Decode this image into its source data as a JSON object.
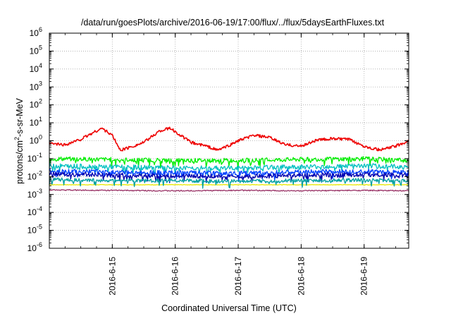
{
  "chart_data": {
    "type": "line",
    "title": "/data/run/goesPlots/archive/2016-06-19/17:00/flux/../flux/5daysEarthFluxes.txt",
    "xlabel": "Coordinated Universal Time (UTC)",
    "ylabel": "protons/cm2-s-sr-MeV",
    "y_scale": "log",
    "ylim": [
      "1e-6",
      "1e6"
    ],
    "y_ticks": [
      {
        "base": "10",
        "exp": "-6"
      },
      {
        "base": "10",
        "exp": "-5"
      },
      {
        "base": "10",
        "exp": "-4"
      },
      {
        "base": "10",
        "exp": "-3"
      },
      {
        "base": "10",
        "exp": "-2"
      },
      {
        "base": "10",
        "exp": "-1"
      },
      {
        "base": "10",
        "exp": "0"
      },
      {
        "base": "10",
        "exp": "1"
      },
      {
        "base": "10",
        "exp": "2"
      },
      {
        "base": "10",
        "exp": "3"
      },
      {
        "base": "10",
        "exp": "4"
      },
      {
        "base": "10",
        "exp": "5"
      },
      {
        "base": "10",
        "exp": "6"
      }
    ],
    "xlim": [
      "2016-06-14 00:00",
      "2016-06-19 17:00"
    ],
    "x_ticks": [
      "2016-6-15",
      "2016-6-16",
      "2016-6-17",
      "2016-6-18",
      "2016-6-19"
    ],
    "grid": true,
    "series": [
      {
        "color": "#ee0000",
        "x": [
          "2016-06-14 00:00",
          "2016-06-14 06:00",
          "2016-06-14 12:00",
          "2016-06-14 16:00",
          "2016-06-14 20:00",
          "2016-06-15 00:00",
          "2016-06-15 03:00",
          "2016-06-15 06:00",
          "2016-06-15 12:00",
          "2016-06-15 18:00",
          "2016-06-15 22:00",
          "2016-06-16 02:00",
          "2016-06-16 06:00",
          "2016-06-16 12:00",
          "2016-06-16 16:00",
          "2016-06-16 20:00",
          "2016-06-17 00:00",
          "2016-06-17 06:00",
          "2016-06-17 12:00",
          "2016-06-17 18:00",
          "2016-06-18 00:00",
          "2016-06-18 06:00",
          "2016-06-18 12:00",
          "2016-06-18 18:00",
          "2016-06-19 00:00",
          "2016-06-19 06:00",
          "2016-06-19 12:00",
          "2016-06-19 17:00"
        ],
        "y": [
          0.7,
          0.6,
          1.2,
          2.5,
          5.0,
          2.0,
          0.3,
          0.4,
          0.8,
          3.5,
          5.0,
          2.0,
          0.8,
          0.5,
          0.3,
          0.5,
          1.0,
          2.0,
          1.5,
          0.6,
          0.5,
          1.1,
          1.3,
          1.2,
          0.5,
          0.3,
          0.5,
          1.0
        ]
      },
      {
        "color": "#00ee00",
        "x": [
          "2016-06-14 00:00",
          "2016-06-15 00:00",
          "2016-06-16 00:00",
          "2016-06-17 00:00",
          "2016-06-18 00:00",
          "2016-06-19 00:00",
          "2016-06-19 17:00"
        ],
        "y": [
          0.1,
          0.09,
          0.08,
          0.08,
          0.09,
          0.1,
          0.08
        ]
      },
      {
        "color": "#00c0c0",
        "x": [
          "2016-06-14 00:00",
          "2016-06-15 00:00",
          "2016-06-16 00:00",
          "2016-06-17 00:00",
          "2016-06-18 00:00",
          "2016-06-19 00:00",
          "2016-06-19 17:00"
        ],
        "y": [
          0.04,
          0.035,
          0.03,
          0.03,
          0.035,
          0.04,
          0.035
        ]
      },
      {
        "color": "#0040ff",
        "x": [
          "2016-06-14 00:00",
          "2016-06-15 00:00",
          "2016-06-16 00:00",
          "2016-06-17 00:00",
          "2016-06-18 00:00",
          "2016-06-19 00:00",
          "2016-06-19 17:00"
        ],
        "y": [
          0.02,
          0.018,
          0.016,
          0.015,
          0.018,
          0.02,
          0.017
        ]
      },
      {
        "color": "#0000b0",
        "x": [
          "2016-06-14 00:00",
          "2016-06-15 00:00",
          "2016-06-16 00:00",
          "2016-06-17 00:00",
          "2016-06-18 00:00",
          "2016-06-19 00:00",
          "2016-06-19 17:00"
        ],
        "y": [
          0.014,
          0.012,
          0.011,
          0.01,
          0.012,
          0.013,
          0.012
        ]
      },
      {
        "color": "#00a0a0",
        "x": [
          "2016-06-14 00:00",
          "2016-06-15 00:00",
          "2016-06-16 00:00",
          "2016-06-17 00:00",
          "2016-06-18 00:00",
          "2016-06-19 00:00",
          "2016-06-19 17:00"
        ],
        "y": [
          0.007,
          0.006,
          0.006,
          0.0055,
          0.006,
          0.0065,
          0.006
        ]
      },
      {
        "color": "#e8e800",
        "x": [
          "2016-06-14 00:00",
          "2016-06-19 17:00"
        ],
        "y": [
          0.0035,
          0.0035
        ]
      },
      {
        "color": "#993366",
        "x": [
          "2016-06-14 00:00",
          "2016-06-15 00:00",
          "2016-06-16 00:00",
          "2016-06-17 00:00",
          "2016-06-18 00:00",
          "2016-06-19 00:00",
          "2016-06-19 17:00"
        ],
        "y": [
          0.0018,
          0.0017,
          0.0016,
          0.0017,
          0.0016,
          0.0017,
          0.0016
        ]
      }
    ]
  }
}
